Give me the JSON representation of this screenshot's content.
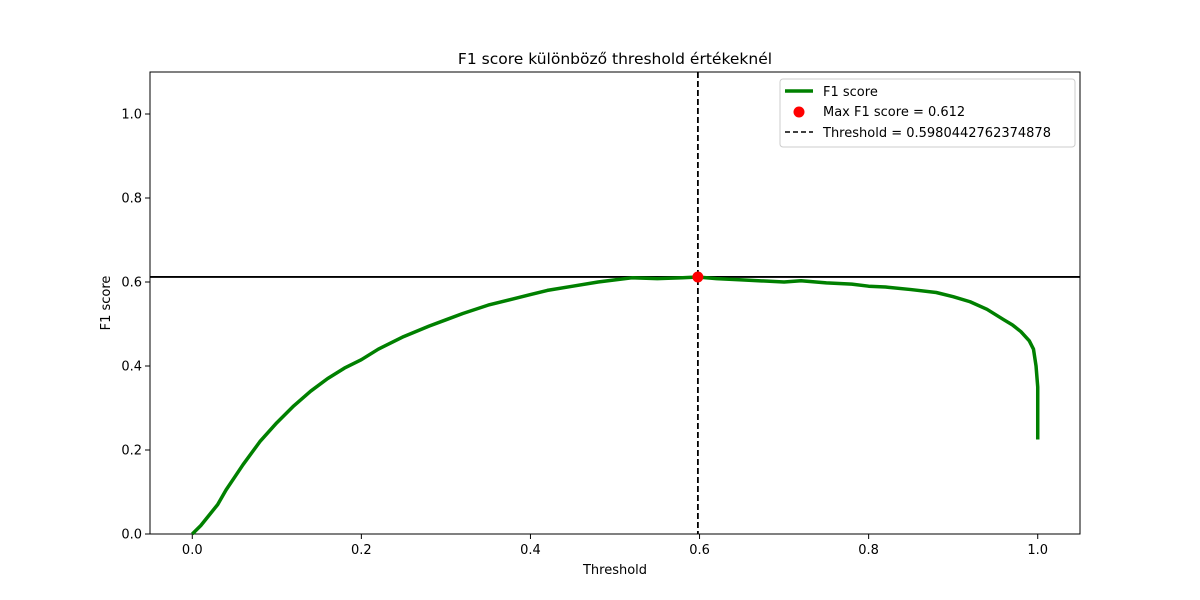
{
  "chart_data": {
    "type": "line",
    "title": "F1 score különböző threshold értékeknél",
    "xlabel": "Threshold",
    "ylabel": "F1 score",
    "xlim": [
      -0.05,
      1.05
    ],
    "ylim": [
      0.0,
      1.1
    ],
    "xticks": [
      0.0,
      0.2,
      0.4,
      0.6,
      0.8,
      1.0
    ],
    "xtick_labels": [
      "0.0",
      "0.2",
      "0.4",
      "0.6",
      "0.8",
      "1.0"
    ],
    "yticks": [
      0.0,
      0.2,
      0.4,
      0.6,
      0.8,
      1.0
    ],
    "ytick_labels": [
      "0.0",
      "0.2",
      "0.4",
      "0.6",
      "0.8",
      "1.0"
    ],
    "grid": false,
    "legend_position": "top-right",
    "series": [
      {
        "name": "F1 score",
        "color": "#008000",
        "x": [
          0.0,
          0.01,
          0.02,
          0.03,
          0.04,
          0.05,
          0.06,
          0.08,
          0.1,
          0.12,
          0.14,
          0.16,
          0.18,
          0.2,
          0.22,
          0.25,
          0.28,
          0.3,
          0.32,
          0.35,
          0.38,
          0.4,
          0.42,
          0.45,
          0.48,
          0.5,
          0.52,
          0.55,
          0.58,
          0.598,
          0.62,
          0.65,
          0.68,
          0.7,
          0.72,
          0.75,
          0.78,
          0.8,
          0.82,
          0.85,
          0.88,
          0.9,
          0.92,
          0.94,
          0.96,
          0.97,
          0.98,
          0.99,
          0.995,
          0.998,
          1.0,
          1.0
        ],
        "y": [
          0.0,
          0.02,
          0.045,
          0.07,
          0.105,
          0.135,
          0.165,
          0.22,
          0.265,
          0.305,
          0.34,
          0.37,
          0.395,
          0.415,
          0.44,
          0.47,
          0.495,
          0.51,
          0.525,
          0.545,
          0.56,
          0.57,
          0.58,
          0.59,
          0.6,
          0.605,
          0.61,
          0.608,
          0.61,
          0.612,
          0.608,
          0.605,
          0.602,
          0.6,
          0.603,
          0.598,
          0.595,
          0.59,
          0.588,
          0.582,
          0.575,
          0.565,
          0.553,
          0.535,
          0.51,
          0.498,
          0.482,
          0.46,
          0.44,
          0.4,
          0.35,
          0.225
        ]
      }
    ],
    "max_point": {
      "label": "Max F1 score = 0.612",
      "x": 0.598,
      "y": 0.612,
      "color": "#ff0000"
    },
    "threshold_line": {
      "label": "Threshold = 0.5980442762374878",
      "x": 0.5980442762374878,
      "color": "#000000"
    },
    "hline": {
      "y": 0.612,
      "color": "#000000"
    }
  }
}
